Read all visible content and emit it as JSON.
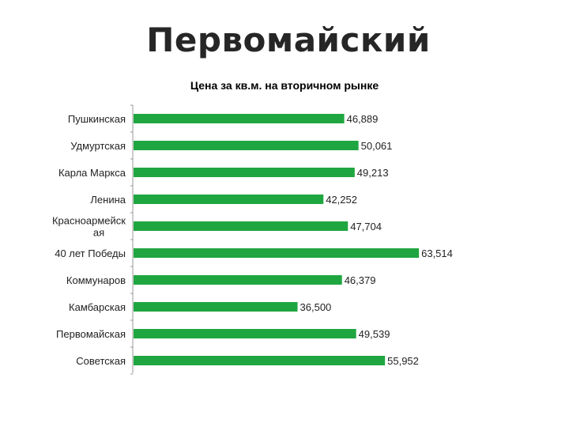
{
  "page": {
    "title": "Первомайский"
  },
  "chart_data": {
    "type": "bar",
    "orientation": "horizontal",
    "title": "Цена за кв.м.  на вторичном рынке",
    "categories": [
      "Пушкинская",
      "Удмуртская",
      "Карла Маркса",
      "Ленина",
      "Красноармейская",
      "40 лет Победы",
      "Коммунаров",
      "Камбарская",
      "Первомайская",
      "Советская"
    ],
    "category_label_lines": [
      [
        "Пушкинская"
      ],
      [
        "Удмуртская"
      ],
      [
        "Карла Маркса"
      ],
      [
        "Ленина"
      ],
      [
        "Красноармейск",
        "ая"
      ],
      [
        "40 лет Победы"
      ],
      [
        "Коммунаров"
      ],
      [
        "Камбарская"
      ],
      [
        "Первомайская"
      ],
      [
        "Советская"
      ]
    ],
    "values": [
      46889,
      50061,
      49213,
      42252,
      47704,
      63514,
      46379,
      36500,
      49539,
      55952
    ],
    "value_labels": [
      "46,889",
      "50,061",
      "49,213",
      "42,252",
      "47,704",
      "63,514",
      "46,379",
      "36,500",
      "49,539",
      "55,952"
    ],
    "xlim": [
      0,
      70000
    ],
    "grid": false,
    "legend": "none",
    "bar_color": "#1fa640",
    "axis_color": "#999999"
  }
}
